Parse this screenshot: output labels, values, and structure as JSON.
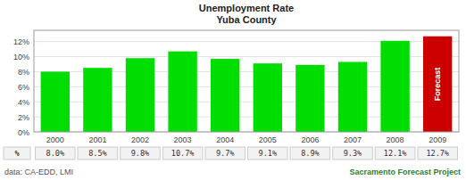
{
  "chart_data": {
    "type": "bar",
    "title": "Unemployment Rate\nYuba County",
    "categories": [
      "2000",
      "2001",
      "2002",
      "2003",
      "2004",
      "2005",
      "2006",
      "2007",
      "2008",
      "2009"
    ],
    "values": [
      8.0,
      8.5,
      9.8,
      10.7,
      9.7,
      9.1,
      8.9,
      9.3,
      12.1,
      12.7
    ],
    "colors": [
      "#00dd00",
      "#00dd00",
      "#00dd00",
      "#00dd00",
      "#00dd00",
      "#00dd00",
      "#00dd00",
      "#00dd00",
      "#00dd00",
      "#cc0000"
    ],
    "ylim": [
      0,
      13.5
    ],
    "yticks": [
      {
        "value": 0,
        "label": "0%"
      },
      {
        "value": 2,
        "label": "2%"
      },
      {
        "value": 4,
        "label": "4%"
      },
      {
        "value": 6,
        "label": "6%"
      },
      {
        "value": 8,
        "label": "8%"
      },
      {
        "value": 10,
        "label": "10%"
      },
      {
        "value": 12,
        "label": "12%"
      }
    ],
    "grid": true,
    "data_labels": true,
    "value_labels": [
      "8.0%",
      "8.5%",
      "9.8%",
      "10.7%",
      "9.7%",
      "9.1%",
      "8.9%",
      "9.3%",
      "12.1%",
      "12.7%"
    ],
    "annotations": [
      "Forecast",
      "%",
      "data: CA-EDD, LMI",
      "Sacramento Forecast Project"
    ]
  }
}
